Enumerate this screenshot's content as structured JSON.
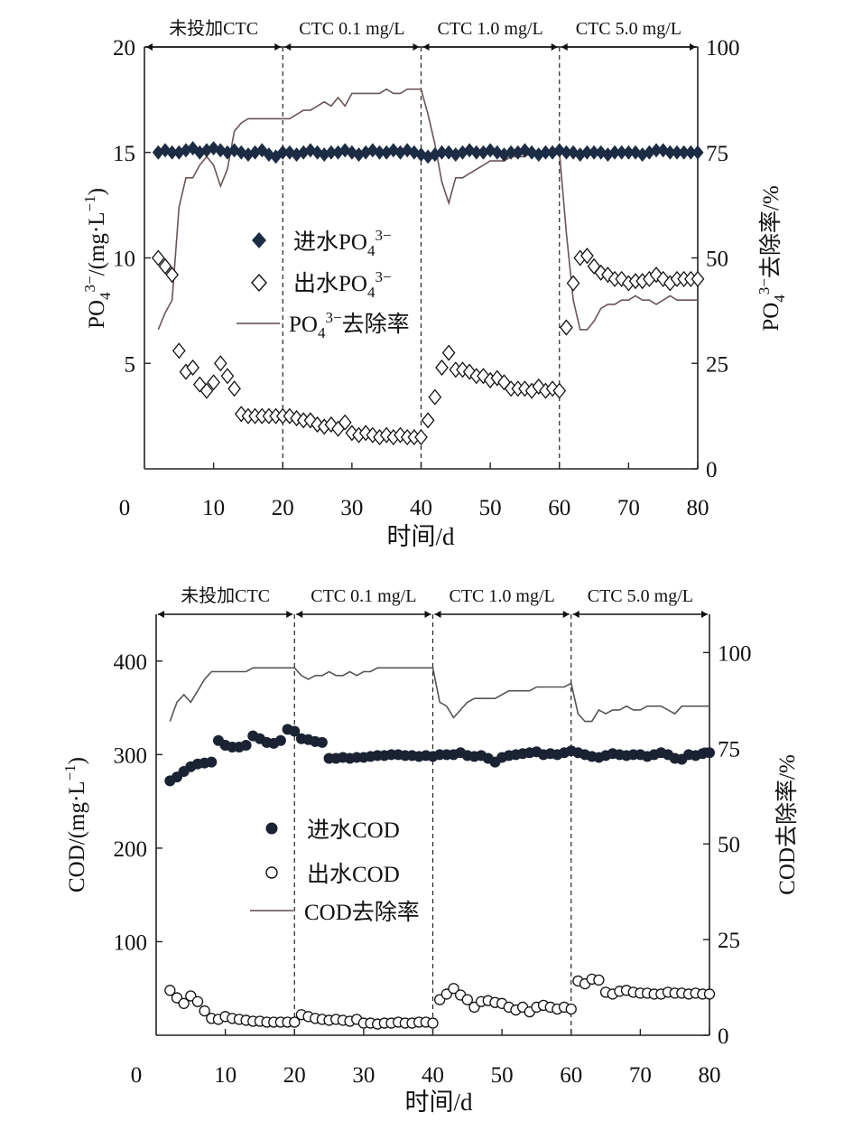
{
  "chart_data": [
    {
      "type": "scatter",
      "xlabel": "时间/d",
      "ylabel_left": "PO₄³⁻/(mg·L⁻¹)",
      "ylabel_right": "PO₄³⁻去除率/%",
      "x_ticks": [
        "0",
        "10",
        "20",
        "30",
        "40",
        "50",
        "60",
        "70",
        "80"
      ],
      "y_left_ticks": [
        "5",
        "10",
        "15",
        "20"
      ],
      "y_left_zero": "0",
      "y_right_ticks": [
        "0",
        "25",
        "50",
        "75",
        "100"
      ],
      "xlim": [
        0,
        80
      ],
      "ylim_left": [
        0,
        20
      ],
      "ylim_right": [
        0,
        100
      ],
      "phases": [
        "未投加CTC",
        "CTC 0.1 mg/L",
        "CTC 1.0 mg/L",
        "CTC 5.0 mg/L"
      ],
      "legend": [
        "进水PO₄³⁻",
        "出水PO₄³⁻",
        "PO₄³⁻去除率"
      ],
      "series": [
        {
          "name": "进水PO₄³⁻",
          "marker": "filled-diamond",
          "x": [
            2,
            3,
            4,
            5,
            6,
            7,
            8,
            9,
            10,
            11,
            12,
            13,
            14,
            15,
            16,
            17,
            18,
            19,
            20,
            21,
            22,
            23,
            24,
            25,
            26,
            27,
            28,
            29,
            30,
            31,
            32,
            33,
            34,
            35,
            36,
            37,
            38,
            39,
            40,
            41,
            42,
            43,
            44,
            45,
            46,
            47,
            48,
            49,
            50,
            51,
            52,
            53,
            54,
            55,
            56,
            57,
            58,
            59,
            60,
            61,
            62,
            63,
            64,
            65,
            66,
            67,
            68,
            69,
            70,
            71,
            72,
            73,
            74,
            75,
            76,
            77,
            78,
            79,
            80
          ],
          "values": [
            15.0,
            15.1,
            15.0,
            15.0,
            15.1,
            15.2,
            15.0,
            15.1,
            15.2,
            15.1,
            15.0,
            15.1,
            15.0,
            14.9,
            15.0,
            15.1,
            14.9,
            14.8,
            15.0,
            15.0,
            14.9,
            15.0,
            15.1,
            15.0,
            14.9,
            15.0,
            15.0,
            15.1,
            15.0,
            14.9,
            15.0,
            15.1,
            15.0,
            15.0,
            15.1,
            15.0,
            15.1,
            15.0,
            14.9,
            14.8,
            14.9,
            15.0,
            15.0,
            14.9,
            15.0,
            15.1,
            15.0,
            15.0,
            15.1,
            15.0,
            14.9,
            15.0,
            15.0,
            15.1,
            15.0,
            14.9,
            15.0,
            15.0,
            15.1,
            15.0,
            15.0,
            14.9,
            15.0,
            15.0,
            15.0,
            14.9,
            15.0,
            15.0,
            15.0,
            15.0,
            14.9,
            15.0,
            15.1,
            15.1,
            15.0,
            15.0,
            15.0,
            15.0,
            15.0
          ]
        },
        {
          "name": "出水PO₄³⁻",
          "marker": "open-diamond",
          "x": [
            2,
            3,
            4,
            5,
            6,
            7,
            8,
            9,
            10,
            11,
            12,
            13,
            14,
            15,
            16,
            17,
            18,
            19,
            20,
            21,
            22,
            23,
            24,
            25,
            26,
            27,
            28,
            29,
            30,
            31,
            32,
            33,
            34,
            35,
            36,
            37,
            38,
            39,
            40,
            41,
            42,
            43,
            44,
            45,
            46,
            47,
            48,
            49,
            50,
            51,
            52,
            53,
            54,
            55,
            56,
            57,
            58,
            59,
            60,
            61,
            62,
            63,
            64,
            65,
            66,
            67,
            68,
            69,
            70,
            71,
            72,
            73,
            74,
            75,
            76,
            77,
            78,
            79,
            80
          ],
          "values": [
            10.0,
            9.6,
            9.2,
            5.6,
            4.6,
            4.8,
            4.0,
            3.7,
            4.1,
            5.0,
            4.4,
            3.8,
            2.6,
            2.5,
            2.5,
            2.5,
            2.5,
            2.5,
            2.5,
            2.5,
            2.4,
            2.3,
            2.3,
            2.1,
            2.0,
            2.1,
            1.9,
            2.2,
            1.7,
            1.6,
            1.7,
            1.6,
            1.5,
            1.6,
            1.5,
            1.6,
            1.5,
            1.5,
            1.5,
            2.3,
            3.4,
            4.8,
            5.5,
            4.7,
            4.7,
            4.6,
            4.4,
            4.4,
            4.2,
            4.3,
            4.1,
            3.8,
            3.8,
            3.8,
            3.7,
            3.9,
            3.7,
            3.8,
            3.7,
            6.7,
            8.8,
            10.0,
            10.1,
            9.6,
            9.3,
            9.2,
            9.0,
            9.0,
            8.8,
            8.9,
            8.9,
            9.0,
            9.2,
            9.0,
            8.8,
            9.0,
            9.0,
            9.0,
            9.0
          ]
        },
        {
          "name": "PO₄³⁻去除率",
          "axis": "right",
          "x": [
            2,
            3,
            4,
            5,
            6,
            7,
            8,
            9,
            10,
            11,
            12,
            13,
            14,
            15,
            16,
            17,
            18,
            19,
            20,
            21,
            22,
            23,
            24,
            25,
            26,
            27,
            28,
            29,
            30,
            31,
            32,
            33,
            34,
            35,
            36,
            37,
            38,
            39,
            40,
            41,
            42,
            43,
            44,
            45,
            46,
            47,
            48,
            49,
            50,
            51,
            52,
            53,
            54,
            55,
            56,
            57,
            58,
            59,
            60,
            61,
            62,
            63,
            64,
            65,
            66,
            67,
            68,
            69,
            70,
            71,
            72,
            73,
            74,
            75,
            76,
            77,
            78,
            79,
            80
          ],
          "values": [
            33,
            37,
            40,
            62,
            69,
            69,
            72,
            74,
            72,
            67,
            71,
            80,
            82,
            83,
            83,
            83,
            83,
            83,
            83,
            83,
            84,
            85,
            85,
            86,
            87,
            86,
            88,
            86,
            89,
            89,
            89,
            89,
            89,
            90,
            89,
            89,
            90,
            90,
            90,
            84,
            77,
            68,
            63,
            69,
            69,
            70,
            71,
            72,
            73,
            73,
            73,
            74,
            74,
            74,
            75,
            74,
            75,
            74,
            75,
            56,
            40,
            33,
            33,
            35,
            38,
            39,
            39,
            40,
            40,
            41,
            40,
            40,
            39,
            40,
            41,
            40,
            40,
            40,
            40
          ]
        }
      ]
    },
    {
      "type": "scatter",
      "xlabel": "时间/d",
      "ylabel_left": "COD/(mg·L⁻¹)",
      "ylabel_right": "COD去除率/%",
      "x_ticks": [
        "0",
        "10",
        "20",
        "30",
        "40",
        "50",
        "60",
        "70",
        "80"
      ],
      "y_left_ticks": [
        "100",
        "200",
        "300",
        "400"
      ],
      "y_left_zero": "0",
      "y_right_ticks": [
        "0",
        "25",
        "50",
        "75",
        "100"
      ],
      "xlim": [
        0,
        80
      ],
      "ylim_left": [
        0,
        450
      ],
      "ylim_right": [
        0,
        110
      ],
      "phases": [
        "未投加CTC",
        "CTC 0.1 mg/L",
        "CTC 1.0 mg/L",
        "CTC 5.0 mg/L"
      ],
      "legend": [
        "进水COD",
        "出水COD",
        "COD去除率"
      ],
      "series": [
        {
          "name": "进水COD",
          "marker": "filled-circle",
          "x": [
            2,
            3,
            4,
            5,
            6,
            7,
            8,
            9,
            10,
            11,
            12,
            13,
            14,
            15,
            16,
            17,
            18,
            19,
            20,
            21,
            22,
            23,
            24,
            25,
            26,
            27,
            28,
            29,
            30,
            31,
            32,
            33,
            34,
            35,
            36,
            37,
            38,
            39,
            40,
            41,
            42,
            43,
            44,
            45,
            46,
            47,
            48,
            49,
            50,
            51,
            52,
            53,
            54,
            55,
            56,
            57,
            58,
            59,
            60,
            61,
            62,
            63,
            64,
            65,
            66,
            67,
            68,
            69,
            70,
            71,
            72,
            73,
            74,
            75,
            76,
            77,
            78,
            79,
            80
          ],
          "values": [
            272,
            276,
            282,
            287,
            290,
            291,
            292,
            315,
            310,
            308,
            308,
            310,
            320,
            317,
            313,
            312,
            315,
            327,
            325,
            317,
            316,
            314,
            313,
            296,
            296,
            297,
            296,
            297,
            297,
            298,
            299,
            299,
            300,
            300,
            299,
            299,
            298,
            299,
            298,
            300,
            300,
            300,
            302,
            299,
            298,
            299,
            296,
            292,
            297,
            299,
            300,
            301,
            302,
            303,
            300,
            301,
            300,
            302,
            304,
            302,
            300,
            298,
            297,
            299,
            301,
            300,
            299,
            300,
            300,
            298,
            300,
            302,
            300,
            296,
            295,
            300,
            299,
            301,
            302
          ]
        },
        {
          "name": "出水COD",
          "marker": "open-circle",
          "x": [
            2,
            3,
            4,
            5,
            6,
            7,
            8,
            9,
            10,
            11,
            12,
            13,
            14,
            15,
            16,
            17,
            18,
            19,
            20,
            21,
            22,
            23,
            24,
            25,
            26,
            27,
            28,
            29,
            30,
            31,
            32,
            33,
            34,
            35,
            36,
            37,
            38,
            39,
            40,
            41,
            42,
            43,
            44,
            45,
            46,
            47,
            48,
            49,
            50,
            51,
            52,
            53,
            54,
            55,
            56,
            57,
            58,
            59,
            60,
            61,
            62,
            63,
            64,
            65,
            66,
            67,
            68,
            69,
            70,
            71,
            72,
            73,
            74,
            75,
            76,
            77,
            78,
            79,
            80
          ],
          "values": [
            48,
            40,
            34,
            42,
            36,
            26,
            18,
            17,
            20,
            18,
            17,
            16,
            15,
            15,
            14,
            14,
            14,
            14,
            14,
            22,
            20,
            18,
            17,
            16,
            17,
            16,
            15,
            17,
            13,
            13,
            12,
            13,
            13,
            14,
            13,
            13,
            14,
            14,
            13,
            38,
            44,
            50,
            43,
            38,
            30,
            36,
            37,
            35,
            34,
            30,
            27,
            30,
            25,
            30,
            32,
            30,
            28,
            30,
            28,
            58,
            55,
            60,
            59,
            46,
            44,
            47,
            48,
            46,
            45,
            45,
            44,
            44,
            46,
            45,
            45,
            44,
            45,
            44,
            44
          ]
        },
        {
          "name": "COD去除率",
          "axis": "right",
          "x": [
            2,
            3,
            4,
            5,
            6,
            7,
            8,
            9,
            10,
            11,
            12,
            13,
            14,
            15,
            16,
            17,
            18,
            19,
            20,
            21,
            22,
            23,
            24,
            25,
            26,
            27,
            28,
            29,
            30,
            31,
            32,
            33,
            34,
            35,
            36,
            37,
            38,
            39,
            40,
            41,
            42,
            43,
            44,
            45,
            46,
            47,
            48,
            49,
            50,
            51,
            52,
            53,
            54,
            55,
            56,
            57,
            58,
            59,
            60,
            61,
            62,
            63,
            64,
            65,
            66,
            67,
            68,
            69,
            70,
            71,
            72,
            73,
            74,
            75,
            76,
            77,
            78,
            79,
            80
          ],
          "values": [
            82,
            87,
            89,
            87,
            90,
            93,
            95,
            95,
            95,
            95,
            95,
            95,
            96,
            96,
            96,
            96,
            96,
            96,
            96,
            94,
            93,
            94,
            94,
            95,
            94,
            94,
            95,
            94,
            95,
            95,
            96,
            96,
            96,
            96,
            96,
            96,
            96,
            96,
            96,
            87,
            86,
            83,
            85,
            87,
            88,
            88,
            88,
            88,
            89,
            90,
            90,
            90,
            90,
            91,
            91,
            91,
            91,
            91,
            92,
            84,
            82,
            82,
            85,
            84,
            85,
            85,
            86,
            85,
            85,
            86,
            86,
            86,
            85,
            84,
            86,
            86,
            86,
            86,
            86
          ]
        }
      ]
    }
  ]
}
